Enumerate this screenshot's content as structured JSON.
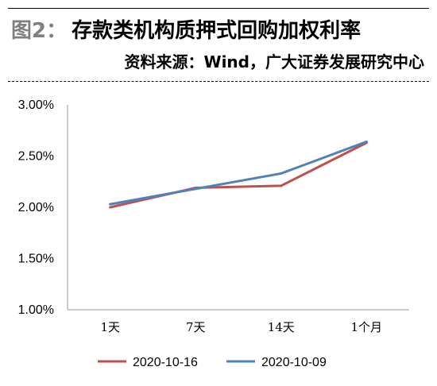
{
  "figure": {
    "label": "图2：",
    "title": "存款类机构质押式回购加权利率",
    "source": "资料来源：Wind，广大证券发展研究中心"
  },
  "chart_data": {
    "type": "line",
    "categories": [
      "1天",
      "7天",
      "14天",
      "1个月"
    ],
    "series": [
      {
        "name": "2020-10-16",
        "color": "#c0504d",
        "values": [
          2.0,
          2.19,
          2.21,
          2.63
        ]
      },
      {
        "name": "2020-10-09",
        "color": "#4f81bd",
        "values": [
          2.03,
          2.18,
          2.33,
          2.64
        ]
      }
    ],
    "yticks": [
      "1.00%",
      "1.50%",
      "2.00%",
      "2.50%",
      "3.00%"
    ],
    "ylim": [
      1.0,
      3.0
    ],
    "grid": false,
    "legend": "bottom"
  }
}
